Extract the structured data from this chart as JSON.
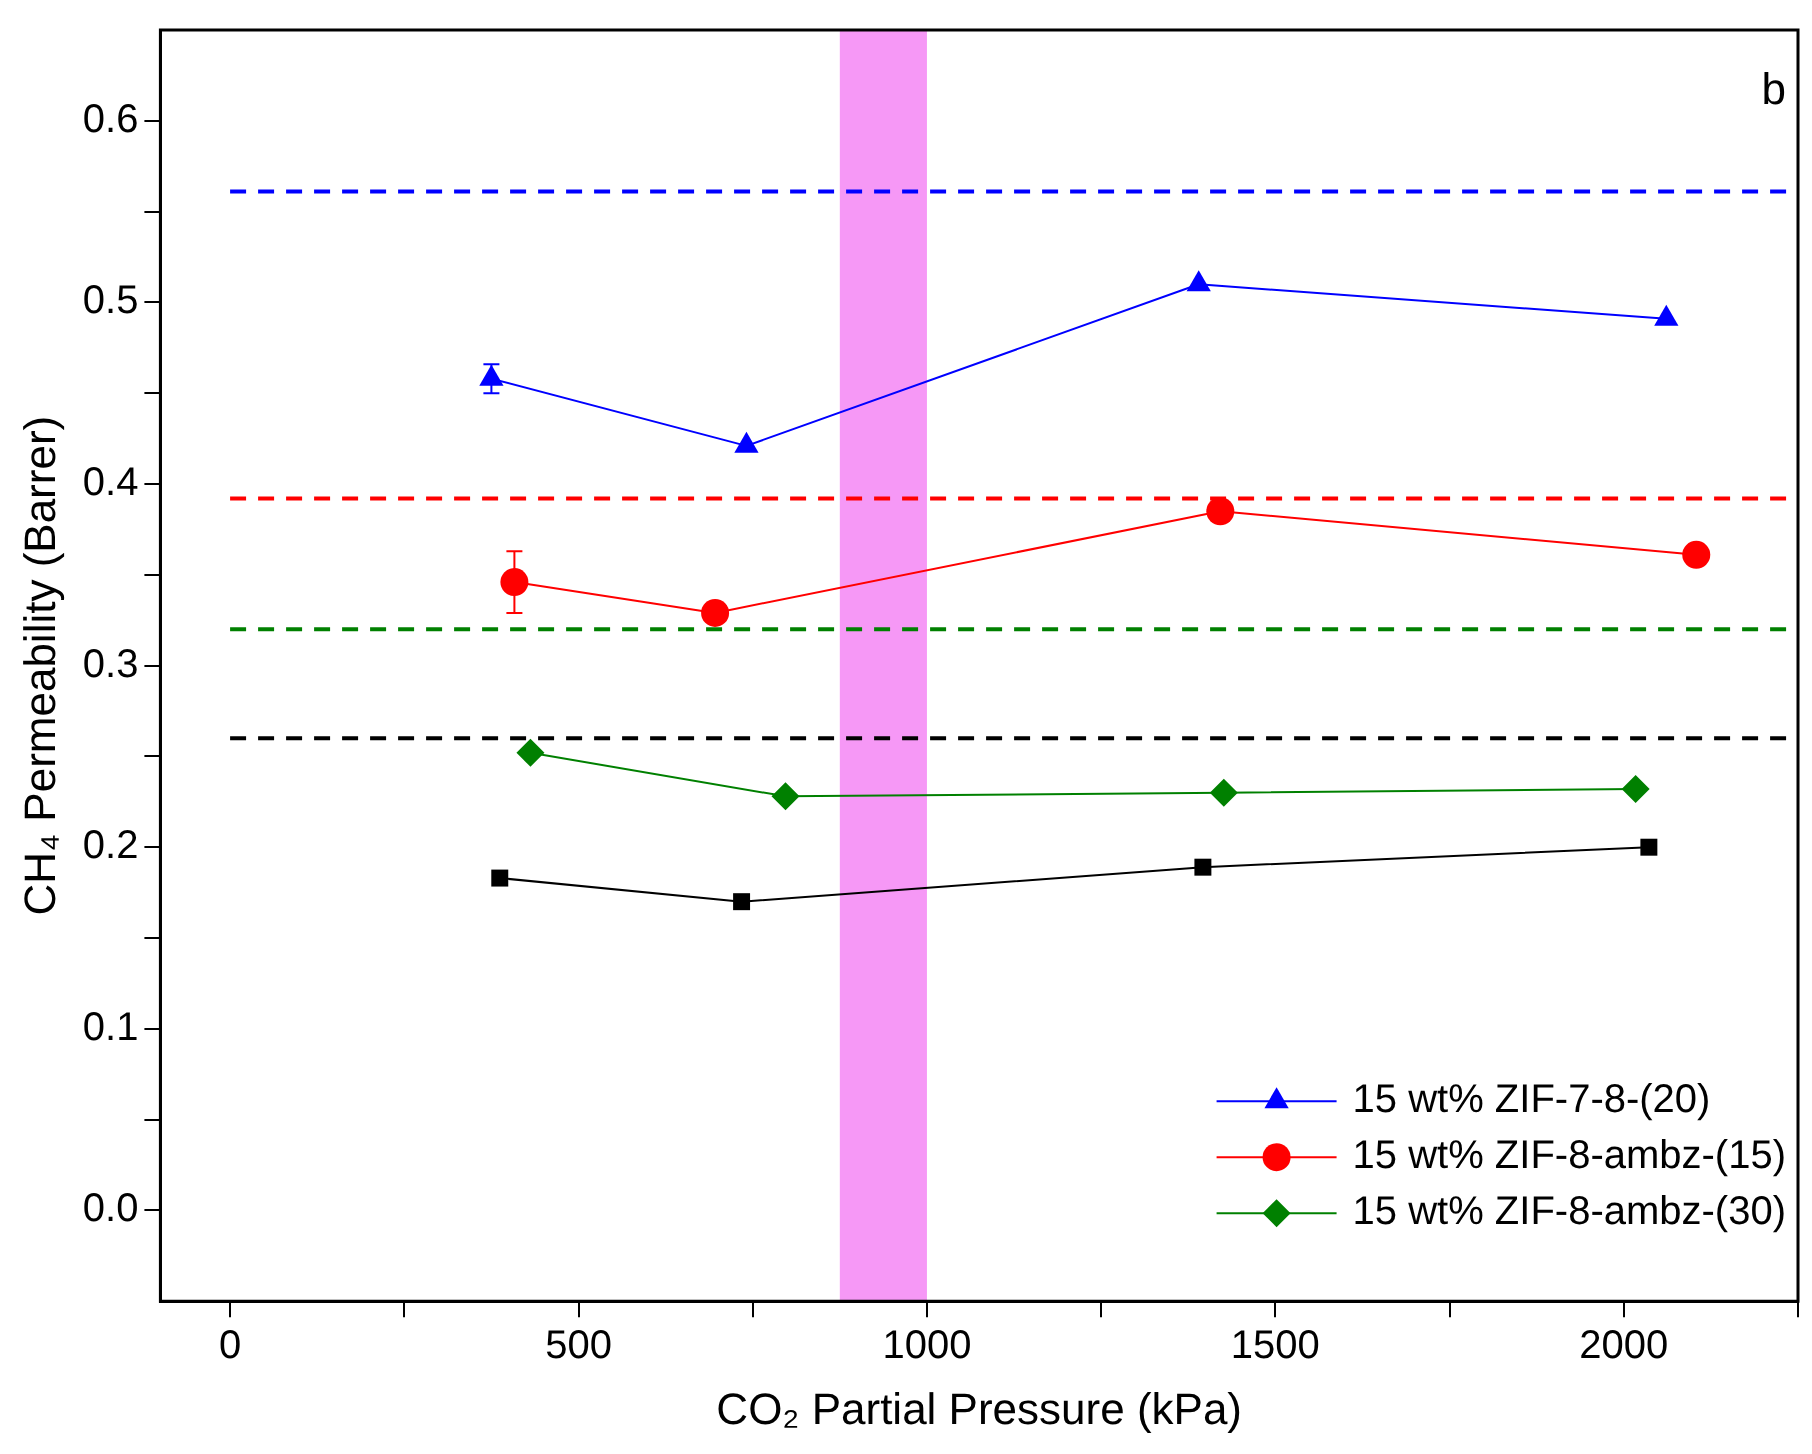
{
  "chart_data": {
    "type": "line",
    "xlabel": "CO₂ Partial Pressure (kPa)",
    "ylabel": "CH₄ Permeability (Barrer)",
    "xlim": [
      -100,
      2250
    ],
    "ylim": [
      -0.05,
      0.65
    ],
    "xticks": [
      0,
      {
        "value": 250,
        "label": null
      },
      500,
      {
        "value": 750,
        "label": null
      },
      1000,
      {
        "value": 1250,
        "label": null
      },
      1500,
      {
        "value": 1750,
        "label": null
      },
      2000,
      {
        "value": 2250,
        "label": null
      }
    ],
    "yticks": [
      {
        "value": 0,
        "label": "0.0"
      },
      {
        "value": 0.05,
        "label": null
      },
      0.1,
      {
        "value": 0.15,
        "label": null
      },
      0.2,
      {
        "value": 0.25,
        "label": null
      },
      0.3,
      {
        "value": 0.35,
        "label": null
      },
      0.4,
      {
        "value": 0.45,
        "label": null
      },
      0.5,
      {
        "value": 0.55,
        "label": null
      },
      0.6
    ],
    "grid": false,
    "legend": "bottom right",
    "line_style": "solid",
    "series": [
      {
        "name": "15 wt% ZIF-7-8-(20)",
        "color": "#0000ff",
        "marker": "triangle",
        "x": [
          375,
          741,
          1390,
          2061
        ],
        "values": [
          0.458,
          0.421,
          0.51,
          0.491
        ],
        "errors": [
          0.008,
          null,
          null,
          null
        ]
      },
      {
        "name": "15 wt% ZIF-8-ambz-(15)",
        "color": "#ff0000",
        "marker": "circle",
        "x": [
          408,
          696,
          1421,
          2104
        ],
        "values": [
          0.346,
          0.329,
          0.385,
          0.361
        ],
        "errors": [
          0.017,
          null,
          null,
          null
        ]
      },
      {
        "name": "15 wt% ZIF-8-ambz-(30)",
        "color": "#008000",
        "marker": "diamond",
        "x": [
          431,
          797,
          1426,
          2017
        ],
        "values": [
          0.252,
          0.228,
          0.23,
          0.232
        ]
      },
      {
        "color": "#000000",
        "marker": "square",
        "x": [
          387,
          734,
          1396,
          2036
        ],
        "values": [
          0.183,
          0.17,
          0.189,
          0.2
        ]
      }
    ],
    "ref_lines": [
      {
        "axis": "y",
        "value": 0.561,
        "color": "#0000ff",
        "line_style": "dashed"
      },
      {
        "axis": "y",
        "value": 0.392,
        "color": "#ff0000",
        "line_style": "dashed"
      },
      {
        "axis": "y",
        "value": 0.32,
        "color": "#008000",
        "line_style": "dashed"
      },
      {
        "axis": "y",
        "value": 0.26,
        "color": "#000000",
        "line_style": "dashed"
      }
    ],
    "bands": [
      {
        "axis": "x",
        "from": 875,
        "to": 1000,
        "color": "#ee44ee"
      }
    ],
    "annotations": [
      "b"
    ]
  }
}
